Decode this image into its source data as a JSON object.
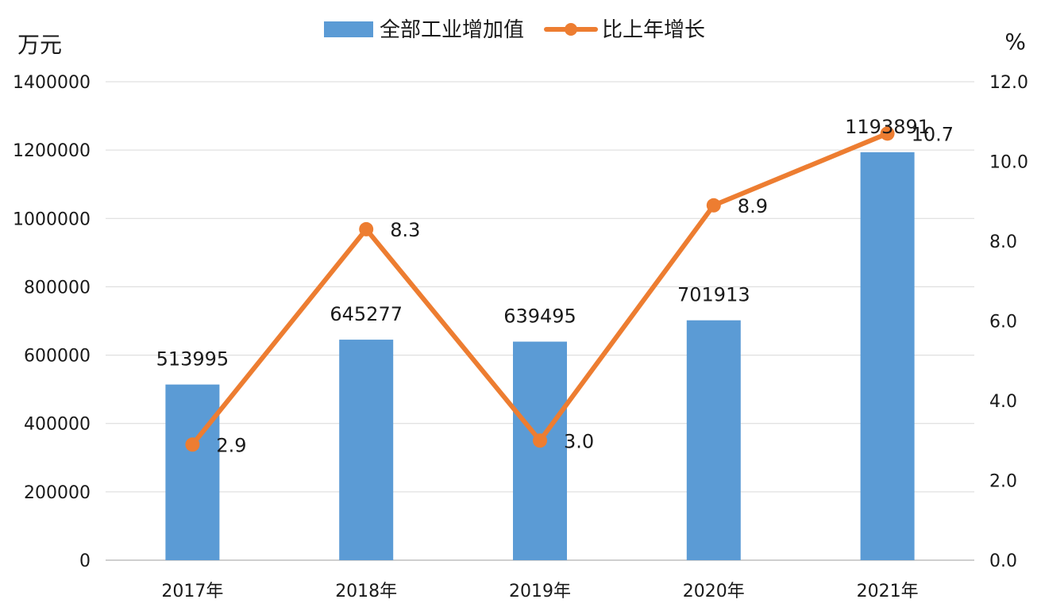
{
  "chart_data": {
    "type": "bar",
    "categories": [
      "2017年",
      "2018年",
      "2019年",
      "2020年",
      "2021年"
    ],
    "y_left_unit": "万元",
    "y_right_unit": "%",
    "ylim_left": [
      0,
      1400000
    ],
    "ylim_right": [
      0.0,
      12.0
    ],
    "y_left_ticks": [
      "0",
      "200000",
      "400000",
      "600000",
      "800000",
      "1000000",
      "1200000",
      "1400000"
    ],
    "y_right_ticks": [
      "0.0",
      "2.0",
      "4.0",
      "6.0",
      "8.0",
      "10.0",
      "12.0"
    ],
    "grid": true,
    "legend_position": "top-center",
    "series": [
      {
        "name": "全部工业增加值",
        "kind": "bar",
        "axis": "left",
        "color": "#5b9bd5",
        "values": [
          513995,
          645277,
          639495,
          701913,
          1193891
        ],
        "labels": [
          "513995",
          "645277",
          "639495",
          "701913",
          "1193891"
        ]
      },
      {
        "name": "比上年增长",
        "kind": "line",
        "axis": "right",
        "color": "#ed7d31",
        "values": [
          2.9,
          8.3,
          3.0,
          8.9,
          10.7
        ],
        "labels": [
          "2.9",
          "8.3",
          "3.0",
          "8.9",
          "10.7"
        ]
      }
    ]
  }
}
